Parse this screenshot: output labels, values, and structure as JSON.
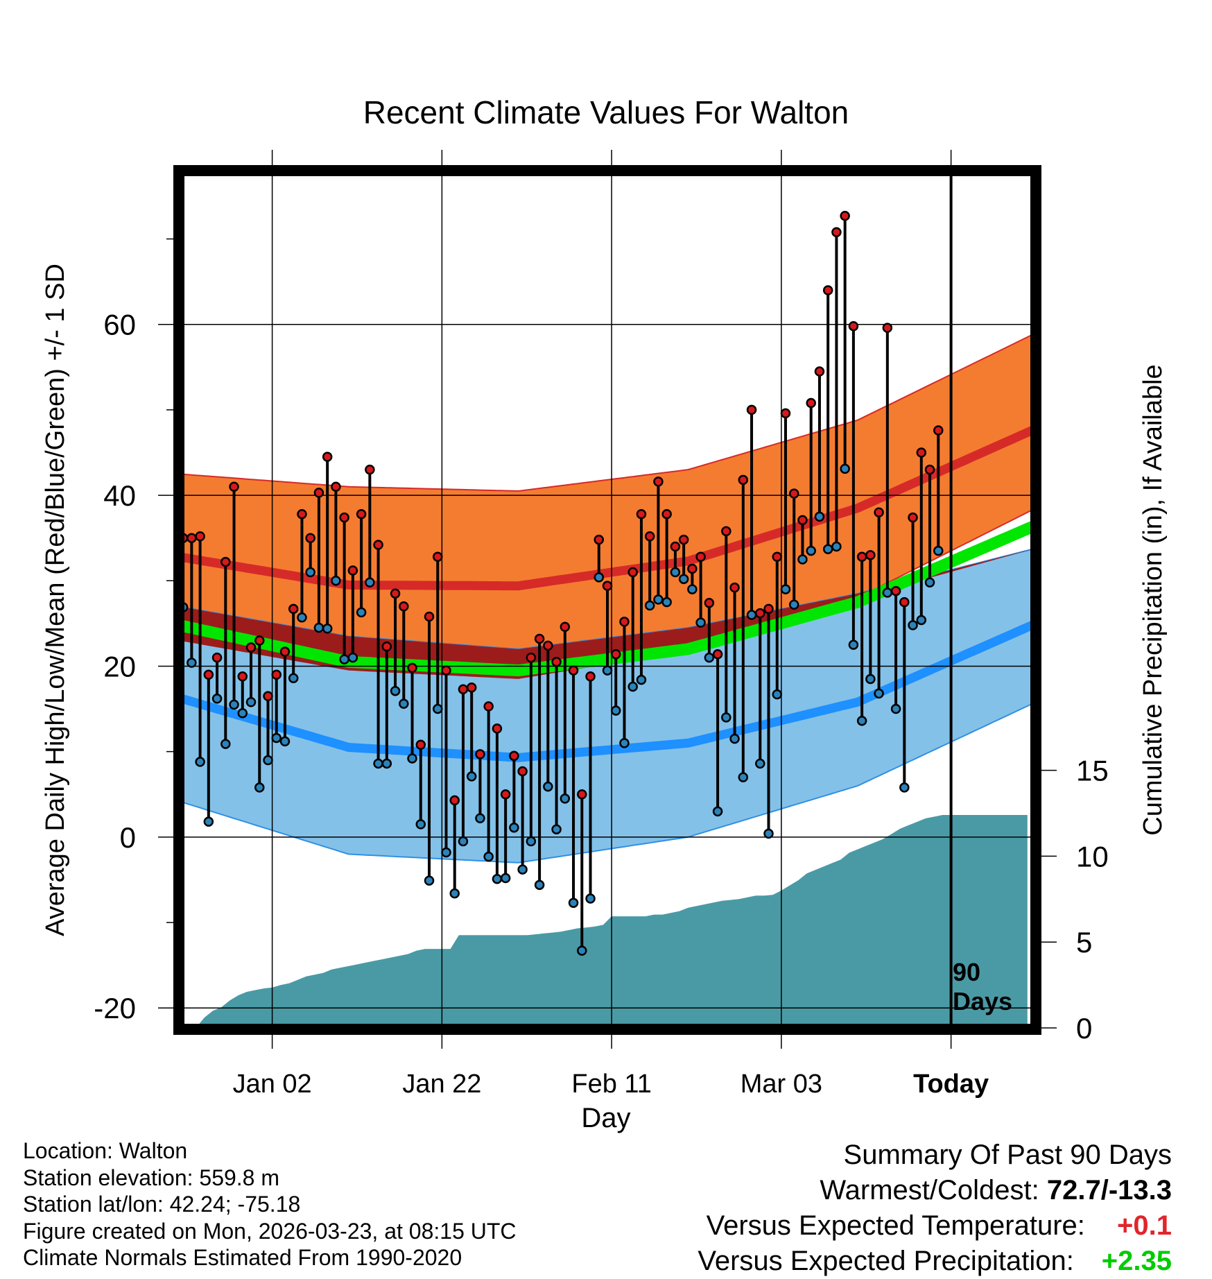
{
  "chart_data": {
    "type": "line",
    "title": "Recent Climate Values For Walton",
    "xlabel": "Day",
    "ylabel": "Average Daily High/Low/Mean (Red/Blue/Green) +/- 1 SD",
    "y2label": "Cumulative Precipitation (in), If Available",
    "ylim": [
      -22.5,
      78
    ],
    "y2lim": [
      0,
      50
    ],
    "x_tick_labels": [
      "Jan 02",
      "Jan 22",
      "Feb 11",
      "Mar 03",
      "Today"
    ],
    "x_tick_days": [
      11,
      31,
      51,
      71,
      91
    ],
    "y_ticks": [
      -20,
      0,
      20,
      40,
      60
    ],
    "y2_ticks": [
      0,
      5,
      10,
      15
    ],
    "xlim": [
      0,
      101
    ],
    "marker_label": [
      "90",
      "Days"
    ],
    "normals": {
      "day": [
        0,
        20,
        40,
        60,
        80,
        101
      ],
      "high_mean": [
        32.8,
        29.5,
        29.4,
        32.3,
        38.5,
        47.8
      ],
      "high_sd_upper": [
        42.5,
        41.0,
        40.5,
        43.0,
        48.8,
        59.0
      ],
      "high_sd_lower": [
        23.0,
        19.5,
        18.5,
        21.8,
        28.0,
        38.5
      ],
      "low_mean": [
        16.3,
        10.5,
        9.3,
        11.0,
        15.8,
        25.0
      ],
      "low_sd_upper": [
        27.0,
        23.5,
        22.0,
        24.5,
        28.5,
        33.8
      ],
      "low_sd_lower": [
        4.2,
        -2.0,
        -3.0,
        0.0,
        6.0,
        15.8
      ],
      "mean": [
        24.8,
        20.5,
        19.5,
        22.0,
        27.5,
        36.5
      ]
    },
    "series": [
      {
        "name": "Daily High",
        "color": "#d7191c",
        "values": [
          35.0,
          35.0,
          35.2,
          19.0,
          21.0,
          32.2,
          41.0,
          18.8,
          22.2,
          23.0,
          16.5,
          19.0,
          21.7,
          26.7,
          37.8,
          35.0,
          40.3,
          44.5,
          41.0,
          37.4,
          31.2,
          37.8,
          43.0,
          34.2,
          22.3,
          28.5,
          27.0,
          19.8,
          10.8,
          25.8,
          32.8,
          19.5,
          4.3,
          17.3,
          17.5,
          9.7,
          15.3,
          12.7,
          5.0,
          9.5,
          7.7,
          21.0,
          23.2,
          22.4,
          20.5,
          24.6,
          19.5,
          5.0,
          18.8,
          34.8,
          29.4,
          21.4,
          25.2,
          31.0,
          37.8,
          35.2,
          41.6,
          37.8,
          34.0,
          34.8,
          31.4,
          32.8,
          27.4,
          21.4,
          35.8,
          29.2,
          41.8,
          50.0,
          26.2,
          26.7,
          32.8,
          49.6,
          40.2,
          37.1,
          50.8,
          54.5,
          64.0,
          70.8,
          72.7,
          59.8,
          32.8,
          33.0,
          38.0,
          59.6,
          28.8,
          27.5,
          37.4,
          45.0,
          43.0,
          47.6
        ]
      },
      {
        "name": "Daily Low",
        "color": "#2b83ba",
        "values": [
          26.9,
          20.4,
          8.8,
          1.8,
          16.2,
          10.9,
          15.5,
          14.5,
          15.8,
          5.8,
          9.0,
          11.6,
          11.2,
          18.6,
          25.7,
          31.0,
          24.5,
          24.4,
          30.0,
          20.8,
          21.0,
          26.3,
          29.8,
          8.6,
          8.6,
          17.1,
          15.6,
          9.2,
          1.5,
          -5.1,
          15.0,
          -1.8,
          -6.6,
          -0.5,
          7.1,
          2.2,
          -2.3,
          -4.9,
          -4.8,
          1.1,
          -3.8,
          -0.5,
          -5.6,
          5.9,
          0.9,
          4.5,
          -7.7,
          -13.3,
          -7.2,
          30.4,
          19.5,
          14.8,
          11.0,
          17.6,
          18.4,
          27.1,
          27.8,
          27.5,
          31.0,
          30.2,
          29.0,
          25.1,
          21.0,
          3.0,
          14.0,
          11.5,
          7.0,
          26.0,
          8.6,
          0.4,
          16.7,
          29.0,
          27.2,
          32.5,
          33.5,
          37.5,
          33.7,
          34.0,
          43.1,
          22.5,
          13.6,
          18.5,
          16.8,
          28.6,
          15.0,
          5.8,
          24.8,
          25.4,
          29.8,
          33.5
        ]
      },
      {
        "name": "Cumulative Precipitation",
        "color": "#4a9aa5",
        "values": [
          0.0,
          0.0,
          0.0,
          0.6,
          1.0,
          1.2,
          1.6,
          1.9,
          2.1,
          2.2,
          2.3,
          2.35,
          2.5,
          2.6,
          2.8,
          3.0,
          3.1,
          3.2,
          3.4,
          3.5,
          3.6,
          3.7,
          3.8,
          3.9,
          4.0,
          4.1,
          4.2,
          4.3,
          4.5,
          4.6,
          4.6,
          4.6,
          4.6,
          5.4,
          5.4,
          5.4,
          5.4,
          5.4,
          5.4,
          5.4,
          5.4,
          5.4,
          5.45,
          5.5,
          5.55,
          5.6,
          5.7,
          5.8,
          5.85,
          5.9,
          6.0,
          6.5,
          6.5,
          6.5,
          6.5,
          6.5,
          6.6,
          6.6,
          6.7,
          6.8,
          7.0,
          7.1,
          7.2,
          7.3,
          7.4,
          7.45,
          7.5,
          7.6,
          7.7,
          7.7,
          7.75,
          8.0,
          8.3,
          8.6,
          9.0,
          9.2,
          9.4,
          9.6,
          9.8,
          10.2,
          10.4,
          10.6,
          10.8,
          11.0,
          11.3,
          11.6,
          11.8,
          12.0,
          12.2,
          12.3,
          12.4,
          12.4,
          12.4,
          12.4,
          12.4,
          12.4,
          12.4,
          12.4,
          12.4,
          12.4,
          12.4
        ]
      }
    ]
  },
  "footer": {
    "location": "Location: Walton",
    "elevation": "Station elevation: 559.8 m",
    "latlon": "Station lat/lon: 42.24; -75.18",
    "created": "Figure created on Mon, 2026-03-23, at 08:15 UTC",
    "normals_period": "Climate Normals Estimated From 1990-2020"
  },
  "summary": {
    "heading": "Summary Of Past 90 Days",
    "warmest_coldest_label": "Warmest/Coldest:",
    "warmest_coldest_value": "72.7/-13.3",
    "temp_label": "Versus Expected Temperature:",
    "temp_value": "+0.1",
    "precip_label": "Versus Expected Precipitation:",
    "precip_value": "+2.35"
  },
  "colors": {
    "high_band": "#f47c30",
    "high_mean": "#d62a28",
    "low_band": "#84c1e8",
    "low_mean": "#1e90ff",
    "overlap": "#9c1c1c",
    "mean": "#00e600",
    "precip": "#4a9aa5",
    "high_dot": "#d7191c",
    "low_dot": "#2b83ba"
  }
}
